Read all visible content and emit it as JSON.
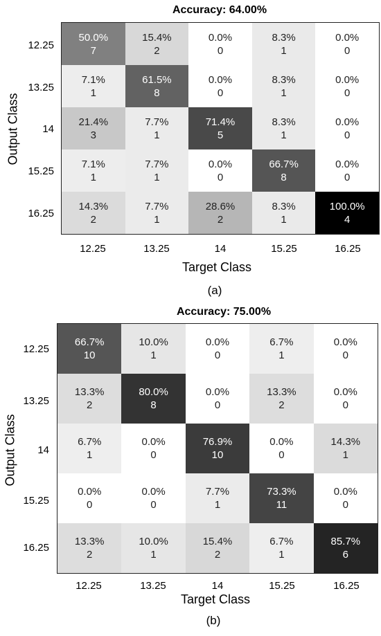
{
  "chart_data": [
    {
      "type": "heatmap",
      "title": "Accuracy: 64.00%",
      "xlabel": "Target Class",
      "ylabel": "Output Class",
      "caption": "(a)",
      "x_categories": [
        "12.25",
        "13.25",
        "14",
        "15.25",
        "16.25"
      ],
      "y_categories": [
        "12.25",
        "13.25",
        "14",
        "15.25",
        "16.25"
      ],
      "colormap": "grayscale (white = 0%, black = 100%)",
      "percent": [
        [
          "50.0%",
          "15.4%",
          "0.0%",
          "8.3%",
          "0.0%"
        ],
        [
          "7.1%",
          "61.5%",
          "0.0%",
          "8.3%",
          "0.0%"
        ],
        [
          "21.4%",
          "7.7%",
          "71.4%",
          "8.3%",
          "0.0%"
        ],
        [
          "7.1%",
          "7.7%",
          "0.0%",
          "66.7%",
          "0.0%"
        ],
        [
          "14.3%",
          "7.7%",
          "28.6%",
          "8.3%",
          "100.0%"
        ]
      ],
      "counts": [
        [
          "7",
          "2",
          "0",
          "1",
          "0"
        ],
        [
          "1",
          "8",
          "0",
          "1",
          "0"
        ],
        [
          "3",
          "1",
          "5",
          "1",
          "0"
        ],
        [
          "1",
          "1",
          "0",
          "8",
          "0"
        ],
        [
          "2",
          "1",
          "2",
          "1",
          "4"
        ]
      ],
      "values": [
        [
          50.0,
          15.4,
          0.0,
          8.3,
          0.0
        ],
        [
          7.1,
          61.5,
          0.0,
          8.3,
          0.0
        ],
        [
          21.4,
          7.7,
          71.4,
          8.3,
          0.0
        ],
        [
          7.1,
          7.7,
          0.0,
          66.7,
          0.0
        ],
        [
          14.3,
          7.7,
          28.6,
          8.3,
          100.0
        ]
      ]
    },
    {
      "type": "heatmap",
      "title": "Accuracy: 75.00%",
      "xlabel": "Target Class",
      "ylabel": "Output Class",
      "caption": "(b)",
      "x_categories": [
        "12.25",
        "13.25",
        "14",
        "15.25",
        "16.25"
      ],
      "y_categories": [
        "12.25",
        "13.25",
        "14",
        "15.25",
        "16.25"
      ],
      "colormap": "grayscale (white = 0%, black = 100%)",
      "percent": [
        [
          "66.7%",
          "10.0%",
          "0.0%",
          "6.7%",
          "0.0%"
        ],
        [
          "13.3%",
          "80.0%",
          "0.0%",
          "13.3%",
          "0.0%"
        ],
        [
          "6.7%",
          "0.0%",
          "76.9%",
          "0.0%",
          "14.3%"
        ],
        [
          "0.0%",
          "0.0%",
          "7.7%",
          "73.3%",
          "0.0%"
        ],
        [
          "13.3%",
          "10.0%",
          "15.4%",
          "6.7%",
          "85.7%"
        ]
      ],
      "counts": [
        [
          "10",
          "1",
          "0",
          "1",
          "0"
        ],
        [
          "2",
          "8",
          "0",
          "2",
          "0"
        ],
        [
          "1",
          "0",
          "10",
          "0",
          "1"
        ],
        [
          "0",
          "0",
          "1",
          "11",
          "0"
        ],
        [
          "2",
          "1",
          "2",
          "1",
          "6"
        ]
      ],
      "values": [
        [
          66.7,
          10.0,
          0.0,
          6.7,
          0.0
        ],
        [
          13.3,
          80.0,
          0.0,
          13.3,
          0.0
        ],
        [
          6.7,
          0.0,
          76.9,
          0.0,
          14.3
        ],
        [
          0.0,
          0.0,
          7.7,
          73.3,
          0.0
        ],
        [
          13.3,
          10.0,
          15.4,
          6.7,
          85.7
        ]
      ]
    }
  ]
}
